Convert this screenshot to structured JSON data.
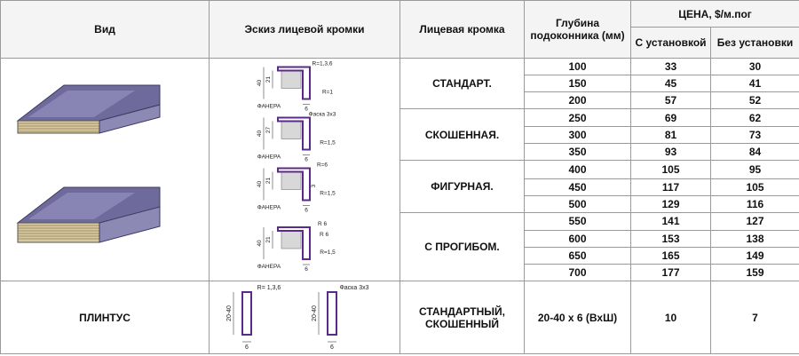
{
  "header": {
    "type": "Вид",
    "sketch": "Эскиз лицевой кромки",
    "edge": "Лицевая кромка",
    "depth": "Глубина подоконника (мм)",
    "price": "ЦЕНА, $/м.пог",
    "with_install": "С установкой",
    "without_install": "Без установки"
  },
  "groups": [
    {
      "edge": "СТАНДАРТ.",
      "sketch": {
        "radius": "R=1,3,6",
        "height": "40",
        "inner": "21",
        "edge": "R=1",
        "material": "ФАНЕРА",
        "width": "6"
      },
      "rows": [
        [
          100,
          33,
          30
        ],
        [
          150,
          45,
          41
        ],
        [
          200,
          57,
          52
        ]
      ]
    },
    {
      "edge": "СКОШЕННАЯ.",
      "sketch": {
        "radius": "Фаска 3х3",
        "height": "40",
        "inner": "27",
        "edge": "R=1,5",
        "material": "ФАНЕРА",
        "width": "6"
      },
      "rows": [
        [
          250,
          69,
          62
        ],
        [
          300,
          81,
          73
        ],
        [
          350,
          93,
          84
        ]
      ]
    },
    {
      "edge": "ФИГУРНАЯ.",
      "sketch": {
        "radius": "R=6",
        "height": "40",
        "inner": "21",
        "extra": "3",
        "edge": "R=1,5",
        "material": "ФАНЕРА",
        "width": "6"
      },
      "rows": [
        [
          400,
          105,
          95
        ],
        [
          450,
          117,
          105
        ],
        [
          500,
          129,
          116
        ]
      ]
    },
    {
      "edge": "С ПРОГИБОМ.",
      "sketch": {
        "radius": "R 6",
        "radius2": "R 6",
        "height": "40",
        "inner": "21",
        "edge": "R=1,5",
        "material": "ФАНЕРА",
        "width": "6"
      },
      "rows": [
        [
          550,
          141,
          127
        ],
        [
          600,
          153,
          138
        ],
        [
          650,
          165,
          149
        ],
        [
          700,
          177,
          159
        ]
      ]
    }
  ],
  "plinth": {
    "type": "ПЛИНТУС",
    "sketches": [
      {
        "radius": "R= 1,3,6",
        "height": "20-40",
        "width": "6"
      },
      {
        "radius": "Фаска 3х3",
        "height": "20-40",
        "width": "6"
      }
    ],
    "edge": "СТАНДАРТНЫЙ, СКОШЕННЫЙ",
    "depth": "20-40 х 6 (ВхШ)",
    "with_install": 10,
    "without_install": 7
  }
}
